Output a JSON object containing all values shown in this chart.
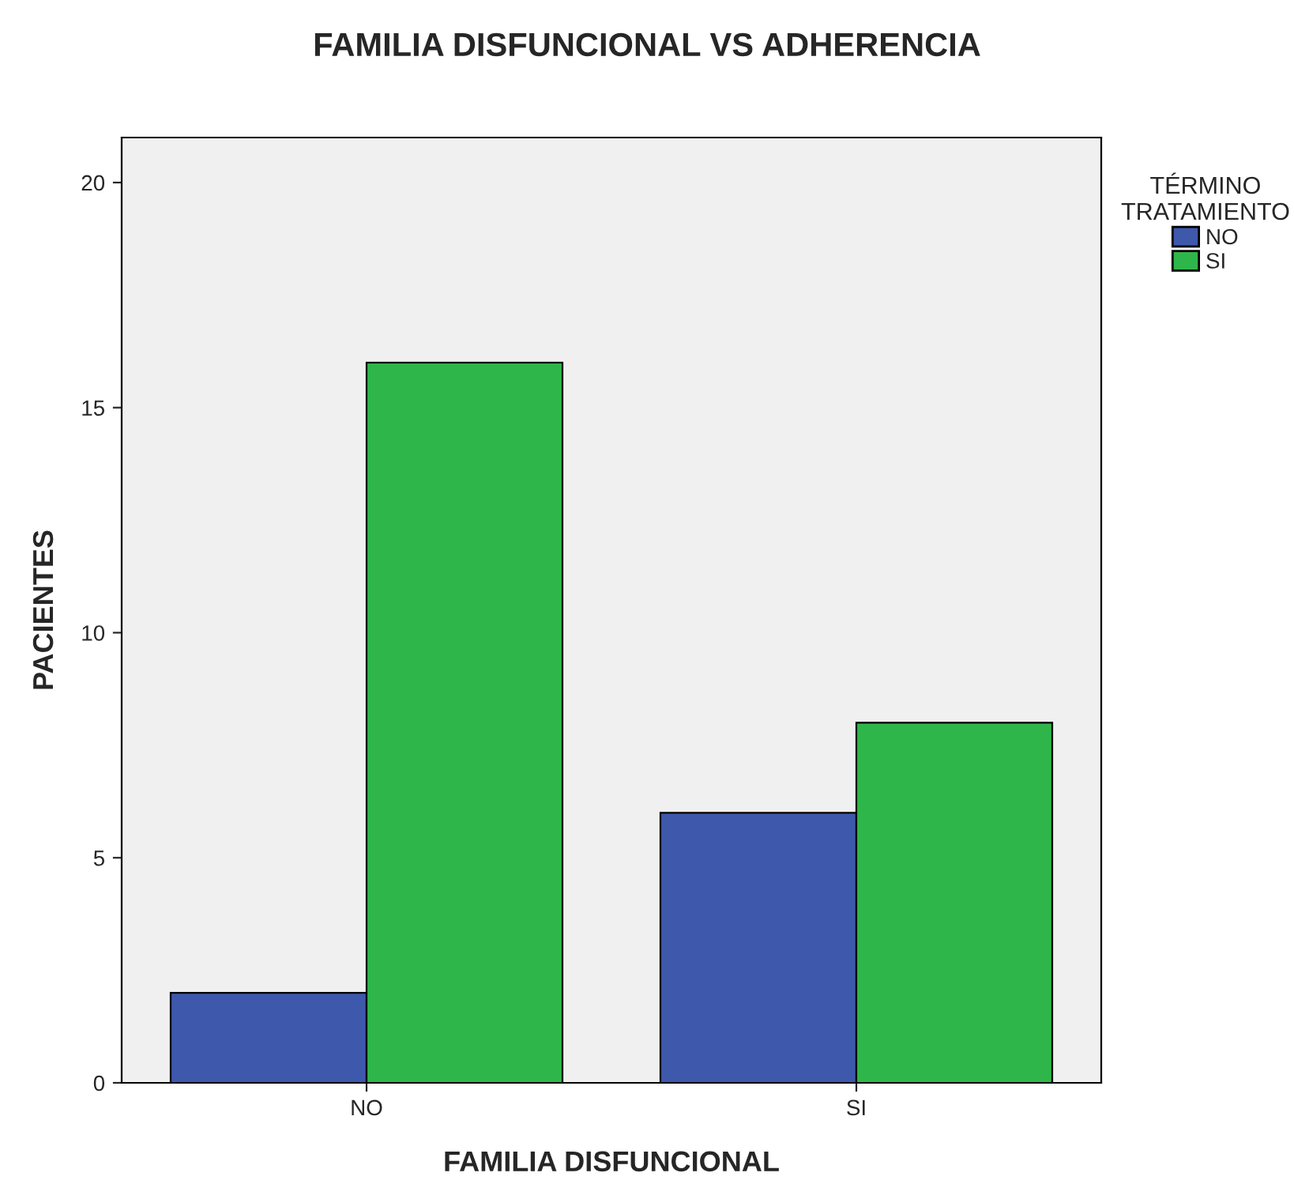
{
  "chart_data": {
    "type": "bar",
    "title": "FAMILIA DISFUNCIONAL VS ADHERENCIA",
    "xlabel": "FAMILIA DISFUNCIONAL",
    "ylabel": "PACIENTES",
    "legend_title": "TÉRMINO\nTRATAMIENTO",
    "categories": [
      "NO",
      "SI"
    ],
    "series": [
      {
        "name": "NO",
        "color": "#3e58ac",
        "values": [
          2,
          6
        ]
      },
      {
        "name": "SI",
        "color": "#2fb64a",
        "values": [
          16,
          8
        ]
      }
    ],
    "ylim": [
      0,
      21
    ],
    "yticks": [
      0,
      5,
      10,
      15,
      20
    ],
    "grid": false,
    "legend": "top right"
  }
}
